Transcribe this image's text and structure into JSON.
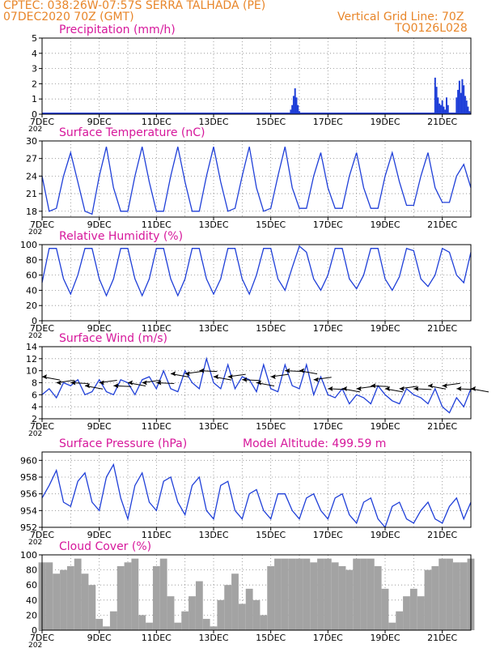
{
  "header": {
    "line1_left": "CPTEC:  038:26W-07:57S  SERRA TALHADA (PE)",
    "line2_left": "07DEC2020 70Z (GMT)",
    "line2_right": "Vertical Grid Line: 70Z",
    "line3_right": "TQ0126L028"
  },
  "colors": {
    "line": "#1f3fd8",
    "header": "#e8862a",
    "title": "#d6179b",
    "cloud": "#a3a3a3"
  },
  "x_tick_labels": [
    "7DEC",
    "9DEC",
    "11DEC",
    "13DEC",
    "15DEC",
    "17DEC",
    "19DEC",
    "21DEC"
  ],
  "x_tick_sub": "202",
  "chart_data": [
    {
      "type": "bar",
      "title": "Precipitation (mm/h)",
      "ylim": [
        0,
        5
      ],
      "yticks": [
        0,
        1,
        2,
        3,
        4,
        5
      ],
      "values": [
        [
          15.7,
          0.3
        ],
        [
          15.75,
          0.6
        ],
        [
          15.8,
          1.2
        ],
        [
          15.85,
          1.7
        ],
        [
          15.9,
          1.1
        ],
        [
          15.95,
          0.6
        ],
        [
          16.0,
          0.2
        ],
        [
          20.75,
          2.4
        ],
        [
          20.8,
          1.8
        ],
        [
          20.85,
          1.1
        ],
        [
          20.9,
          0.7
        ],
        [
          20.95,
          0.6
        ],
        [
          21.0,
          0.9
        ],
        [
          21.05,
          0.5
        ],
        [
          21.1,
          0.3
        ],
        [
          21.15,
          1.1
        ],
        [
          21.2,
          0.6
        ],
        [
          21.5,
          1.1
        ],
        [
          21.55,
          1.6
        ],
        [
          21.6,
          2.2
        ],
        [
          21.65,
          1.4
        ],
        [
          21.7,
          2.3
        ],
        [
          21.75,
          1.9
        ],
        [
          21.8,
          1.2
        ],
        [
          21.85,
          0.9
        ],
        [
          21.9,
          0.5
        ],
        [
          21.95,
          0.2
        ]
      ]
    },
    {
      "type": "line",
      "title": "Surface Temperature (nC)",
      "ylim": [
        17,
        30
      ],
      "yticks": [
        18,
        21,
        24,
        27,
        30
      ],
      "x": [
        7.0,
        7.25,
        7.5,
        7.75,
        8.0,
        8.25,
        8.5,
        8.75,
        9.0,
        9.25,
        9.5,
        9.75,
        10.0,
        10.25,
        10.5,
        10.75,
        11.0,
        11.25,
        11.5,
        11.75,
        12.0,
        12.25,
        12.5,
        12.75,
        13.0,
        13.25,
        13.5,
        13.75,
        14.0,
        14.25,
        14.5,
        14.75,
        15.0,
        15.25,
        15.5,
        15.75,
        16.0,
        16.25,
        16.5,
        16.75,
        17.0,
        17.25,
        17.5,
        17.75,
        18.0,
        18.25,
        18.5,
        18.75,
        19.0,
        19.25,
        19.5,
        19.75,
        20.0,
        20.25,
        20.5,
        20.75,
        21.0,
        21.25,
        21.5,
        21.75,
        22.0
      ],
      "values": [
        24,
        18,
        18.5,
        24,
        28,
        23,
        18,
        17.5,
        24,
        29,
        22,
        18,
        18,
        24,
        29,
        23,
        18,
        18,
        24,
        29,
        23,
        18,
        18,
        24,
        29,
        23,
        18,
        18.5,
        24,
        29,
        22,
        18,
        18.5,
        24,
        29,
        22,
        18.5,
        18.5,
        24,
        28,
        22,
        18.5,
        18.5,
        24,
        28,
        22,
        18.5,
        18.5,
        24,
        28,
        23,
        19,
        19,
        24,
        28,
        22,
        19.5,
        19.5,
        24,
        26,
        22
      ]
    },
    {
      "type": "line",
      "title": "Relative Humidity (%)",
      "ylim": [
        0,
        100
      ],
      "yticks": [
        0,
        20,
        40,
        60,
        80,
        100
      ],
      "x": [
        7.0,
        7.25,
        7.5,
        7.75,
        8.0,
        8.25,
        8.5,
        8.75,
        9.0,
        9.25,
        9.5,
        9.75,
        10.0,
        10.25,
        10.5,
        10.75,
        11.0,
        11.25,
        11.5,
        11.75,
        12.0,
        12.25,
        12.5,
        12.75,
        13.0,
        13.25,
        13.5,
        13.75,
        14.0,
        14.25,
        14.5,
        14.75,
        15.0,
        15.25,
        15.5,
        15.75,
        16.0,
        16.25,
        16.5,
        16.75,
        17.0,
        17.25,
        17.5,
        17.75,
        18.0,
        18.25,
        18.5,
        18.75,
        19.0,
        19.25,
        19.5,
        19.75,
        20.0,
        20.25,
        20.5,
        20.75,
        21.0,
        21.25,
        21.5,
        21.75,
        22.0
      ],
      "values": [
        50,
        95,
        95,
        55,
        35,
        60,
        95,
        95,
        55,
        33,
        55,
        95,
        95,
        55,
        33,
        55,
        95,
        95,
        55,
        33,
        55,
        95,
        95,
        55,
        35,
        55,
        95,
        95,
        55,
        35,
        60,
        95,
        95,
        55,
        40,
        70,
        98,
        90,
        55,
        40,
        60,
        95,
        95,
        55,
        42,
        60,
        95,
        95,
        55,
        40,
        58,
        95,
        92,
        55,
        45,
        60,
        95,
        90,
        60,
        50,
        90
      ]
    },
    {
      "type": "line",
      "title": "Surface Wind (m/s)",
      "ylim": [
        2,
        14
      ],
      "yticks": [
        2,
        4,
        6,
        8,
        10,
        12,
        14
      ],
      "x": [
        7.0,
        7.25,
        7.5,
        7.75,
        8.0,
        8.25,
        8.5,
        8.75,
        9.0,
        9.25,
        9.5,
        9.75,
        10.0,
        10.25,
        10.5,
        10.75,
        11.0,
        11.25,
        11.5,
        11.75,
        12.0,
        12.25,
        12.5,
        12.75,
        13.0,
        13.25,
        13.5,
        13.75,
        14.0,
        14.25,
        14.5,
        14.75,
        15.0,
        15.25,
        15.5,
        15.75,
        16.0,
        16.25,
        16.5,
        16.75,
        17.0,
        17.25,
        17.5,
        17.75,
        18.0,
        18.25,
        18.5,
        18.75,
        19.0,
        19.25,
        19.5,
        19.75,
        20.0,
        20.25,
        20.5,
        20.75,
        21.0,
        21.25,
        21.5,
        21.75,
        22.0
      ],
      "values": [
        6,
        7,
        5.5,
        8,
        7.5,
        8.5,
        6,
        6.5,
        8.5,
        6.5,
        6,
        8.5,
        8,
        6,
        8.5,
        9,
        7,
        10,
        7,
        6.5,
        10,
        8,
        7,
        12,
        8,
        7,
        11,
        7,
        9,
        8.5,
        6.5,
        11,
        7,
        6.5,
        11,
        7.5,
        7,
        11,
        6,
        9,
        6,
        5.5,
        7,
        4.5,
        6,
        5.5,
        4.5,
        7.5,
        6,
        5,
        4.5,
        7,
        6,
        5.5,
        4.5,
        7,
        4,
        3,
        5.5,
        4,
        7
      ],
      "arrows": [
        [
          7.0,
          9
        ],
        [
          7.5,
          8
        ],
        [
          8.0,
          8
        ],
        [
          8.5,
          7.5
        ],
        [
          9.0,
          8
        ],
        [
          9.5,
          7.5
        ],
        [
          10.0,
          8
        ],
        [
          10.5,
          8
        ],
        [
          11.0,
          8
        ],
        [
          11.5,
          9.5
        ],
        [
          12.0,
          9.5
        ],
        [
          12.5,
          10
        ],
        [
          13.0,
          9
        ],
        [
          13.5,
          9
        ],
        [
          14.0,
          8.5
        ],
        [
          14.5,
          8
        ],
        [
          15.0,
          9
        ],
        [
          15.5,
          10
        ],
        [
          16.0,
          10
        ],
        [
          16.5,
          8.5
        ],
        [
          17.0,
          7
        ],
        [
          17.5,
          7
        ],
        [
          18.0,
          7
        ],
        [
          18.5,
          7.5
        ],
        [
          19.0,
          7
        ],
        [
          19.5,
          7
        ],
        [
          20.0,
          7
        ],
        [
          20.5,
          7.5
        ],
        [
          21.0,
          7.5
        ],
        [
          21.5,
          7
        ],
        [
          22.0,
          7
        ]
      ]
    },
    {
      "type": "line",
      "title": "Surface Pressure (hPa)",
      "annotation": "Model Altitude: 499.59 m",
      "ylim": [
        952,
        961
      ],
      "yticks": [
        952,
        954,
        956,
        958,
        960
      ],
      "x": [
        7.0,
        7.25,
        7.5,
        7.75,
        8.0,
        8.25,
        8.5,
        8.75,
        9.0,
        9.25,
        9.5,
        9.75,
        10.0,
        10.25,
        10.5,
        10.75,
        11.0,
        11.25,
        11.5,
        11.75,
        12.0,
        12.25,
        12.5,
        12.75,
        13.0,
        13.25,
        13.5,
        13.75,
        14.0,
        14.25,
        14.5,
        14.75,
        15.0,
        15.25,
        15.5,
        15.75,
        16.0,
        16.25,
        16.5,
        16.75,
        17.0,
        17.25,
        17.5,
        17.75,
        18.0,
        18.25,
        18.5,
        18.75,
        19.0,
        19.25,
        19.5,
        19.75,
        20.0,
        20.25,
        20.5,
        20.75,
        21.0,
        21.25,
        21.5,
        21.75,
        22.0
      ],
      "values": [
        955.5,
        957,
        958.8,
        955,
        954.5,
        957.5,
        958.5,
        955,
        954,
        958,
        959.5,
        955.5,
        953,
        957,
        958.5,
        955,
        954,
        957.5,
        958,
        955,
        953.5,
        957,
        958,
        954,
        953,
        957,
        957.5,
        954,
        953,
        956,
        956.5,
        954,
        953,
        956,
        956,
        954,
        953,
        955.5,
        956,
        954,
        953,
        955.5,
        956,
        953.5,
        952.5,
        955,
        955.5,
        953,
        952,
        954.5,
        955,
        953,
        952.5,
        954,
        955,
        953,
        952.5,
        954.5,
        955.5,
        953,
        955
      ]
    },
    {
      "type": "bar",
      "title": "Cloud Cover (%)",
      "ylim": [
        0,
        100
      ],
      "yticks": [
        0,
        20,
        40,
        60,
        80,
        100
      ],
      "x": [
        7.0,
        7.25,
        7.5,
        7.75,
        8.0,
        8.25,
        8.5,
        8.75,
        9.0,
        9.25,
        9.5,
        9.75,
        10.0,
        10.25,
        10.5,
        10.75,
        11.0,
        11.25,
        11.5,
        11.75,
        12.0,
        12.25,
        12.5,
        12.75,
        13.0,
        13.25,
        13.5,
        13.75,
        14.0,
        14.25,
        14.5,
        14.75,
        15.0,
        15.25,
        15.5,
        15.75,
        16.0,
        16.25,
        16.5,
        16.75,
        17.0,
        17.25,
        17.5,
        17.75,
        18.0,
        18.25,
        18.5,
        18.75,
        19.0,
        19.25,
        19.5,
        19.75,
        20.0,
        20.25,
        20.5,
        20.75,
        21.0,
        21.25,
        21.5,
        21.75,
        22.0
      ],
      "values": [
        90,
        90,
        75,
        80,
        85,
        95,
        75,
        60,
        15,
        5,
        25,
        85,
        90,
        95,
        20,
        10,
        85,
        95,
        45,
        10,
        25,
        45,
        65,
        15,
        5,
        40,
        60,
        75,
        35,
        55,
        40,
        20,
        85,
        95,
        95,
        95,
        95,
        95,
        90,
        95,
        95,
        90,
        85,
        80,
        95,
        95,
        95,
        85,
        55,
        10,
        25,
        45,
        55,
        45,
        80,
        85,
        95,
        95,
        90,
        90,
        95
      ]
    }
  ]
}
